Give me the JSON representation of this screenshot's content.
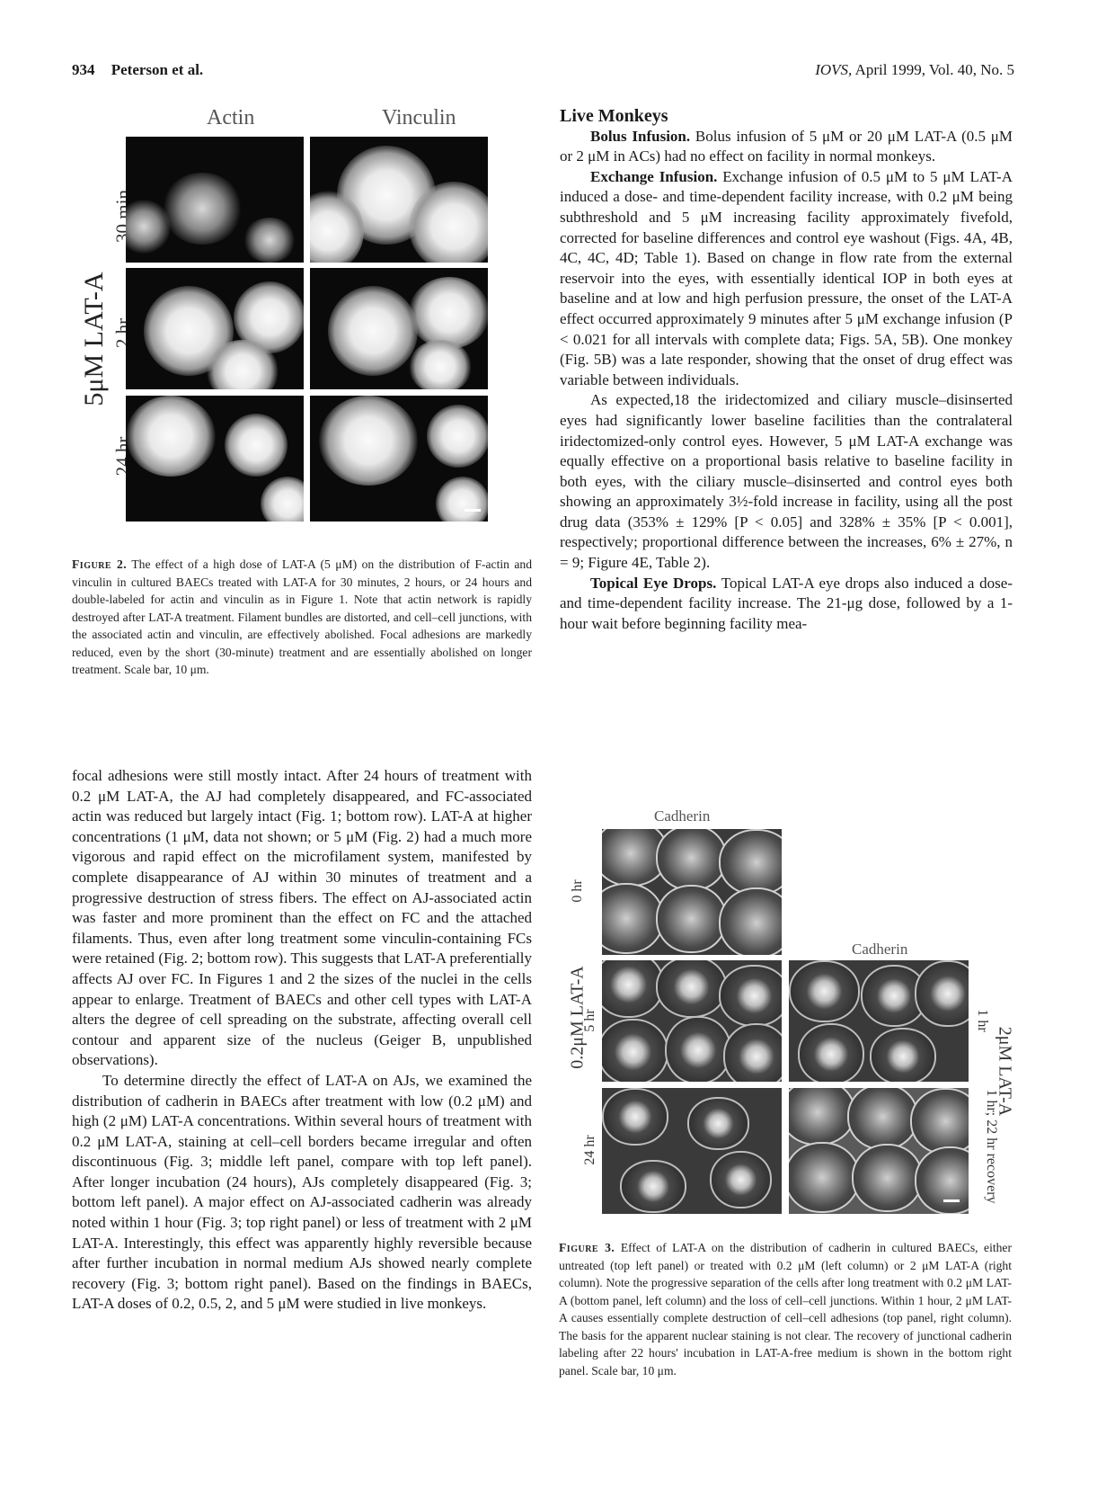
{
  "header": {
    "page_number": "934",
    "authors": "Peterson et al.",
    "journal": "IOVS,",
    "issue": "April 1999, Vol. 40, No. 5"
  },
  "figure2": {
    "col_labels": [
      "Actin",
      "Vinculin"
    ],
    "row_labels": [
      "30 min",
      "2 hr",
      "24 hr"
    ],
    "side_label": "5μM LAT-A",
    "caption_label": "Figure 2.",
    "caption_text": "The effect of a high dose of LAT-A (5 μM) on the distribution of F-actin and vinculin in cultured BAECs treated with LAT-A for 30 minutes, 2 hours, or 24 hours and double-labeled for actin and vinculin as in Figure 1. Note that actin network is rapidly destroyed after LAT-A treatment. Filament bundles are distorted, and cell–cell junctions, with the associated actin and vinculin, are effectively abolished. Focal adhesions are markedly reduced, even by the short (30-minute) treatment and are essentially abolished on longer treatment. Scale bar, 10 μm."
  },
  "left_column": {
    "p1": "focal adhesions were still mostly intact. After 24 hours of treatment with 0.2 μM LAT-A, the AJ had completely disappeared, and FC-associated actin was reduced but largely intact (Fig. 1; bottom row). LAT-A at higher concentrations (1 μM, data not shown; or 5 μM (Fig. 2) had a much more vigorous and rapid effect on the microfilament system, manifested by complete disappearance of AJ within 30 minutes of treatment and a progressive destruction of stress fibers. The effect on AJ-associated actin was faster and more prominent than the effect on FC and the attached filaments. Thus, even after long treatment some vinculin-containing FCs were retained (Fig. 2; bottom row). This suggests that LAT-A preferentially affects AJ over FC. In Figures 1 and 2 the sizes of the nuclei in the cells appear to enlarge. Treatment of BAECs and other cell types with LAT-A alters the degree of cell spreading on the substrate, affecting overall cell contour and apparent size of the nucleus (Geiger B, unpublished observations).",
    "p2": "To determine directly the effect of LAT-A on AJs, we examined the distribution of cadherin in BAECs after treatment with low (0.2 μM) and high (2 μM) LAT-A concentrations. Within several hours of treatment with 0.2 μM LAT-A, staining at cell–cell borders became irregular and often discontinuous (Fig. 3; middle left panel, compare with top left panel). After longer incubation (24 hours), AJs completely disappeared (Fig. 3; bottom left panel). A major effect on AJ-associated cadherin was already noted within 1 hour (Fig. 3; top right panel) or less of treatment with 2 μM LAT-A. Interestingly, this effect was apparently highly reversible because after further incubation in normal medium AJs showed nearly complete recovery (Fig. 3; bottom right panel). Based on the findings in BAECs, LAT-A doses of 0.2, 0.5, 2, and 5 μM were studied in live monkeys."
  },
  "right_column": {
    "section_title": "Live Monkeys",
    "bolus_head": "Bolus Infusion.",
    "bolus_text": "Bolus infusion of 5 μM or 20 μM LAT-A (0.5 μM or 2 μM in ACs) had no effect on facility in normal monkeys.",
    "exchange_head": "Exchange Infusion.",
    "exchange_text": "Exchange infusion of 0.5 μM to 5 μM LAT-A induced a dose- and time-dependent facility increase, with 0.2 μM being subthreshold and 5 μM increasing facility approximately fivefold, corrected for baseline differences and control eye washout (Figs. 4A, 4B, 4C, 4C, 4D; Table 1). Based on change in flow rate from the external reservoir into the eyes, with essentially identical IOP in both eyes at baseline and at low and high perfusion pressure, the onset of the LAT-A effect occurred approximately 9 minutes after 5 μM exchange infusion (P < 0.021 for all intervals with complete data; Figs. 5A, 5B). One monkey (Fig. 5B) was a late responder, showing that the onset of drug effect was variable between individuals.",
    "expected_text": "As expected,18 the iridectomized and ciliary muscle–disinserted eyes had significantly lower baseline facilities than the contralateral iridectomized-only control eyes. However, 5 μM LAT-A exchange was equally effective on a proportional basis relative to baseline facility in both eyes, with the ciliary muscle–disinserted and control eyes both showing an approximately 3½-fold increase in facility, using all the post drug data (353% ± 129% [P < 0.05] and 328% ± 35% [P < 0.001], respectively; proportional difference between the increases, 6% ± 27%, n = 9; Figure 4E, Table 2).",
    "topical_head": "Topical Eye Drops.",
    "topical_text": "Topical LAT-A eye drops also induced a dose-and time-dependent facility increase. The 21-μg dose, followed by a 1-hour wait before beginning facility mea-"
  },
  "figure3": {
    "left_title": "Cadherin",
    "right_title": "Cadherin",
    "left_rows": [
      "0 hr",
      "5 hr",
      "24 hr"
    ],
    "left_side_label": "0.2μM LAT-A",
    "right_rows": [
      "1 hr",
      "1 hr; 22 hr recovery"
    ],
    "right_side_label": "2μM LAT-A",
    "caption_label": "Figure 3.",
    "caption_text": "Effect of LAT-A on the distribution of cadherin in cultured BAECs, either untreated (top left panel) or treated with 0.2 μM (left column) or 2 μM LAT-A (right column). Note the progressive separation of the cells after long treatment with 0.2 μM LAT-A (bottom panel, left column) and the loss of cell–cell junctions. Within 1 hour, 2 μM LAT-A causes essentially complete destruction of cell–cell adhesions (top panel, right column). The basis for the apparent nuclear staining is not clear. The recovery of junctional cadherin labeling after 22 hours' incubation in LAT-A-free medium is shown in the bottom right panel. Scale bar, 10 μm."
  }
}
